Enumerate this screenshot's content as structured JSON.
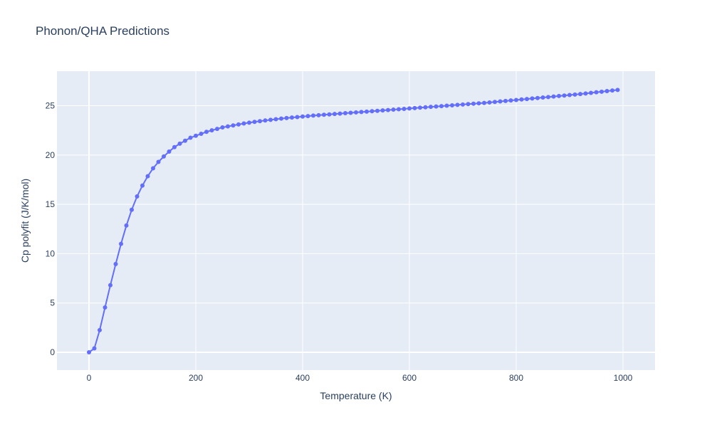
{
  "chart_data": {
    "type": "line",
    "title": "Phonon/QHA Predictions",
    "xlabel": "Temperature (K)",
    "ylabel": "Cp polyfit (J/K/mol)",
    "xlim": [
      -60,
      1060
    ],
    "ylim": [
      -1.8,
      28.5
    ],
    "x_ticks": [
      0,
      200,
      400,
      600,
      800,
      1000
    ],
    "y_ticks": [
      0,
      5,
      10,
      15,
      20,
      25
    ],
    "x_tick_labels": [
      "0",
      "200",
      "400",
      "600",
      "800",
      "1000"
    ],
    "y_tick_labels": [
      "0",
      "5",
      "10",
      "15",
      "20",
      "25"
    ],
    "grid": true,
    "legend": "none",
    "colors": {
      "series": "#636efa",
      "plot_bg": "#e5ecf6",
      "grid": "#ffffff",
      "text": "#2a3f5f"
    },
    "series": [
      {
        "mode": "lines+markers",
        "x": [
          0,
          10,
          20,
          30,
          40,
          50,
          60,
          70,
          80,
          90,
          100,
          110,
          120,
          130,
          140,
          150,
          160,
          170,
          180,
          190,
          200,
          210,
          220,
          230,
          240,
          250,
          260,
          270,
          280,
          290,
          300,
          310,
          320,
          330,
          340,
          350,
          360,
          370,
          380,
          390,
          400,
          410,
          420,
          430,
          440,
          450,
          460,
          470,
          480,
          490,
          500,
          510,
          520,
          530,
          540,
          550,
          560,
          570,
          580,
          590,
          600,
          610,
          620,
          630,
          640,
          650,
          660,
          670,
          680,
          690,
          700,
          710,
          720,
          730,
          740,
          750,
          760,
          770,
          780,
          790,
          800,
          810,
          820,
          830,
          840,
          850,
          860,
          870,
          880,
          890,
          900,
          910,
          920,
          930,
          940,
          950,
          960,
          970,
          980,
          990
        ],
        "y": [
          0.0,
          0.4,
          2.25,
          4.55,
          6.8,
          8.95,
          11.0,
          12.85,
          14.45,
          15.8,
          16.9,
          17.85,
          18.65,
          19.3,
          19.85,
          20.35,
          20.8,
          21.15,
          21.45,
          21.75,
          21.95,
          22.15,
          22.35,
          22.5,
          22.65,
          22.8,
          22.9,
          23.0,
          23.1,
          23.2,
          23.28,
          23.36,
          23.43,
          23.5,
          23.57,
          23.63,
          23.69,
          23.75,
          23.8,
          23.85,
          23.9,
          23.95,
          24.0,
          24.04,
          24.08,
          24.12,
          24.16,
          24.2,
          24.24,
          24.28,
          24.32,
          24.36,
          24.4,
          24.44,
          24.48,
          24.52,
          24.56,
          24.6,
          24.64,
          24.68,
          24.72,
          24.76,
          24.8,
          24.84,
          24.88,
          24.92,
          24.96,
          25.0,
          25.04,
          25.08,
          25.12,
          25.16,
          25.2,
          25.24,
          25.28,
          25.33,
          25.38,
          25.43,
          25.48,
          25.53,
          25.58,
          25.63,
          25.68,
          25.73,
          25.78,
          25.83,
          25.88,
          25.93,
          25.98,
          26.03,
          26.08,
          26.13,
          26.18,
          26.24,
          26.3,
          26.36,
          26.42,
          26.48,
          26.54,
          26.6
        ]
      }
    ]
  }
}
